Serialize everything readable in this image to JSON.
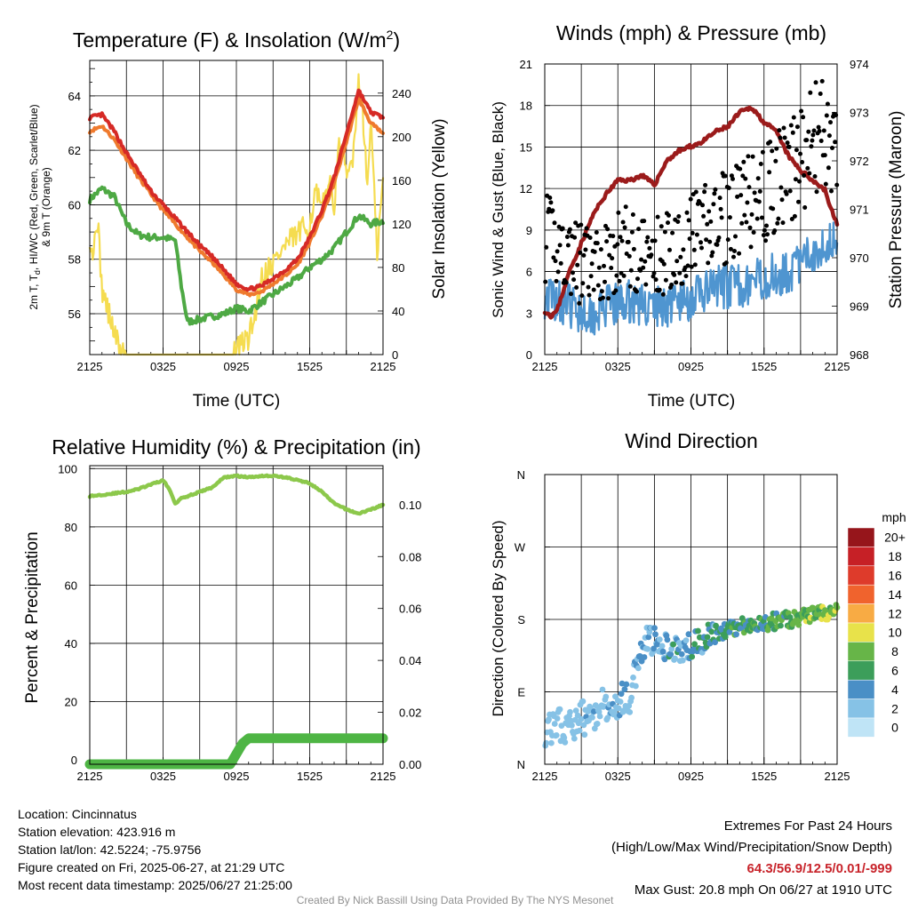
{
  "chart_data": [
    {
      "type": "line",
      "title": "Temperature (F) & Insolation (W/m²)",
      "title_main": "Temperature (F) & Insolation (W/m",
      "title_sup": "2",
      "title_end": ")",
      "xlabel": "Time (UTC)",
      "ylabel_left_lines": [
        "2m T, T",
        "d",
        ", HI/WC (Red, Green, Scarlet/Blue)",
        "& 9m T (Orange)"
      ],
      "ylabel_right": "Solar Insolation (Yellow)",
      "xlim": [
        0,
        24
      ],
      "x_ticks": [
        "2125",
        "0325",
        "0925",
        "1525",
        "2125"
      ],
      "ylim_left": [
        54.5,
        65.3
      ],
      "y_ticks_left": [
        "56",
        "58",
        "60",
        "62",
        "64"
      ],
      "ylim_right": [
        0,
        270
      ],
      "y_ticks_right": [
        "0",
        "40",
        "80",
        "120",
        "160",
        "200",
        "240"
      ],
      "series": [
        {
          "key": "2m_temp",
          "color": "#d62a26",
          "x": [
            0,
            1,
            2,
            3,
            4,
            5,
            6,
            7,
            8,
            9,
            10,
            11,
            12,
            13,
            14,
            15,
            16,
            17,
            18,
            19,
            20,
            21,
            22,
            23,
            24
          ],
          "y": [
            63.2,
            63.3,
            62.7,
            61.9,
            61.2,
            60.5,
            60.0,
            59.5,
            59.0,
            58.5,
            58.1,
            57.6,
            57.1,
            56.9,
            57.0,
            57.3,
            57.6,
            58.0,
            58.8,
            59.8,
            61.0,
            62.6,
            64.2,
            63.4,
            63.2
          ]
        },
        {
          "key": "9m_temp",
          "color": "#ef7a2e",
          "x": [
            0,
            1,
            2,
            3,
            4,
            5,
            6,
            7,
            8,
            9,
            10,
            11,
            12,
            13,
            14,
            15,
            16,
            17,
            18,
            19,
            20,
            21,
            22,
            23,
            24
          ],
          "y": [
            62.7,
            62.9,
            62.4,
            61.7,
            61.0,
            60.4,
            59.8,
            59.3,
            58.8,
            58.3,
            57.9,
            57.4,
            56.9,
            56.7,
            56.8,
            57.1,
            57.4,
            57.8,
            58.6,
            59.6,
            60.8,
            62.3,
            63.9,
            63.0,
            62.6
          ]
        },
        {
          "key": "dewpoint",
          "color": "#4ea944",
          "x": [
            0,
            1,
            2,
            3,
            4,
            5,
            6,
            7,
            7.5,
            8,
            9,
            10,
            11,
            12,
            13,
            14,
            15,
            16,
            17,
            18,
            19,
            20,
            21,
            22,
            23,
            24
          ],
          "y": [
            60.2,
            60.6,
            60.3,
            59.3,
            58.9,
            58.8,
            58.8,
            58.7,
            57.0,
            55.7,
            55.8,
            55.9,
            56.0,
            56.2,
            56.1,
            56.4,
            56.7,
            57.0,
            57.3,
            57.7,
            58.0,
            58.4,
            59.0,
            59.6,
            59.3,
            59.4
          ]
        },
        {
          "key": "insolation",
          "color": "#f5dc50",
          "x": [
            0,
            0.3,
            0.6,
            1.0,
            1.5,
            2.0,
            2.5,
            3.0,
            3.5,
            4.0,
            5,
            6,
            7,
            8,
            9,
            10,
            11,
            12,
            13,
            13.5,
            14,
            15,
            16,
            17,
            18,
            18.5,
            19,
            19.5,
            20,
            20.5,
            21,
            21.5,
            22,
            22.3,
            22.7,
            23,
            23.5,
            24
          ],
          "y": [
            110,
            90,
            130,
            60,
            40,
            20,
            5,
            0,
            0,
            0,
            0,
            0,
            0,
            0,
            0,
            0,
            0,
            5,
            15,
            35,
            70,
            85,
            100,
            110,
            120,
            150,
            130,
            160,
            140,
            200,
            160,
            180,
            250,
            235,
            150,
            220,
            90,
            160
          ]
        }
      ]
    },
    {
      "type": "line",
      "title": "Winds (mph) & Pressure (mb)",
      "xlabel": "Time (UTC)",
      "ylabel_left": "Sonic Wind & Gust (Blue, Black)",
      "ylabel_right": "Station Pressure (Maroon)",
      "xlim": [
        0,
        24
      ],
      "x_ticks": [
        "2125",
        "0325",
        "0925",
        "1525",
        "2125"
      ],
      "ylim_left": [
        0,
        21
      ],
      "y_ticks_left": [
        "0",
        "3",
        "6",
        "9",
        "12",
        "15",
        "18",
        "21"
      ],
      "ylim_right": [
        968,
        974
      ],
      "y_ticks_right": [
        "968",
        "969",
        "970",
        "971",
        "972",
        "973",
        "974"
      ],
      "series": [
        {
          "key": "wind",
          "color": "#4f95d0",
          "x": [
            0,
            1,
            2,
            3,
            4,
            5,
            6,
            7,
            8,
            9,
            10,
            11,
            12,
            13,
            14,
            15,
            16,
            17,
            18,
            19,
            20,
            21,
            22,
            23,
            24
          ],
          "y": [
            4.2,
            4.0,
            3.5,
            3.2,
            3.0,
            3.4,
            3.6,
            3.8,
            3.6,
            3.4,
            3.6,
            3.8,
            4.0,
            4.4,
            4.8,
            4.9,
            5.0,
            5.2,
            5.5,
            5.8,
            6.0,
            6.5,
            7.5,
            8.0,
            8.6
          ]
        },
        {
          "key": "gust",
          "color": "#000000",
          "x": [
            0,
            1,
            2,
            3,
            4,
            5,
            6,
            7,
            8,
            9,
            10,
            11,
            12,
            13,
            14,
            15,
            16,
            17,
            18,
            19,
            20,
            21,
            22,
            23,
            24
          ],
          "y": [
            8.5,
            8.0,
            7.2,
            6.5,
            6.0,
            6.8,
            7.5,
            7.8,
            7.2,
            6.8,
            7.5,
            8.0,
            8.5,
            9.0,
            9.5,
            10.0,
            10.5,
            11.0,
            11.5,
            12.5,
            13.0,
            14.0,
            15.5,
            16.0,
            14.0
          ]
        },
        {
          "key": "pressure",
          "color": "#9b1b1b",
          "x": [
            0,
            0.5,
            1,
            1.5,
            2,
            3,
            4,
            5,
            6,
            7,
            8,
            9,
            10,
            11,
            12,
            13,
            14,
            15,
            16,
            17,
            18,
            19,
            20,
            21,
            22,
            23,
            23.5,
            24
          ],
          "y": [
            968.9,
            968.8,
            968.9,
            969.3,
            969.7,
            970.3,
            970.9,
            971.3,
            971.6,
            971.6,
            971.7,
            971.5,
            972.0,
            972.2,
            972.3,
            972.4,
            972.6,
            972.7,
            973.0,
            973.1,
            972.8,
            972.6,
            972.1,
            971.8,
            971.6,
            971.4,
            971.0,
            970.7
          ]
        }
      ]
    },
    {
      "type": "line",
      "title": "Relative Humidity (%) & Precipitation (in)",
      "xlabel": "",
      "ylabel_left": "Percent & Precipitation",
      "xlim": [
        0,
        24
      ],
      "x_ticks": [
        "2125",
        "0325",
        "0925",
        "1525",
        "2125"
      ],
      "ylim_left": [
        0,
        100
      ],
      "y_ticks_left": [
        "0",
        "20",
        "40",
        "60",
        "80",
        "100"
      ],
      "ylim_right": [
        0,
        0.115
      ],
      "y_ticks_right": [
        "0.00",
        "0.02",
        "0.04",
        "0.06",
        "0.08",
        "0.10"
      ],
      "series": [
        {
          "key": "rh",
          "color": "#8cc84b",
          "x": [
            0,
            1,
            2,
            3,
            4,
            5,
            6,
            6.5,
            7,
            7.5,
            8,
            9,
            10,
            11,
            12,
            13,
            14,
            15,
            16,
            17,
            18,
            19,
            20,
            21,
            22,
            23,
            24
          ],
          "y": [
            90.5,
            91.0,
            91.5,
            92.0,
            93.0,
            94.5,
            96.0,
            93.0,
            88.0,
            90.0,
            90.5,
            92.0,
            93.5,
            97.0,
            97.5,
            97.0,
            97.5,
            97.5,
            97.0,
            96.0,
            95.0,
            92.0,
            88.0,
            86.0,
            84.5,
            86.0,
            87.5
          ]
        },
        {
          "key": "precip",
          "color": "#4eb544",
          "x": [
            0,
            11.5,
            12,
            12.5,
            13,
            24
          ],
          "y": [
            0,
            0,
            0.004,
            0.008,
            0.01,
            0.01
          ]
        }
      ]
    },
    {
      "type": "scatter",
      "title": "Wind Direction",
      "ylabel_left": "Direction (Colored By Speed)",
      "xlim": [
        0,
        24
      ],
      "x_ticks": [
        "2125",
        "0325",
        "0925",
        "1525",
        "2125"
      ],
      "y_ticks": [
        "N",
        "E",
        "S",
        "W",
        "N"
      ],
      "ylim": [
        0,
        360
      ],
      "colorbar": {
        "title": "mph",
        "labels": [
          "0",
          "2",
          "4",
          "6",
          "8",
          "10",
          "12",
          "14",
          "16",
          "18",
          "20+"
        ],
        "colors": [
          "#bfe4f6",
          "#86c2e6",
          "#4a8fc6",
          "#3c9e5a",
          "#67b548",
          "#e8e24a",
          "#f8ab44",
          "#f0632d",
          "#de3b2b",
          "#c62026",
          "#96151b"
        ]
      },
      "trend": {
        "x": [
          0,
          2,
          3.5,
          4,
          5,
          6,
          7,
          8,
          9,
          10,
          11,
          12,
          13,
          14,
          15,
          16,
          17,
          18,
          19,
          20,
          21,
          22,
          23,
          24
        ],
        "y": [
          45,
          50,
          60,
          60,
          75,
          80,
          85,
          150,
          155,
          145,
          140,
          148,
          155,
          162,
          168,
          172,
          175,
          176,
          178,
          180,
          182,
          186,
          190,
          188
        ]
      }
    }
  ],
  "footer": {
    "location": "Location: Cincinnatus",
    "elevation": "Station elevation: 423.916 m",
    "latlon": "Station lat/lon: 42.5224; -75.9756",
    "created": "Figure created on Fri, 2025-06-27, at 21:29 UTC",
    "recent": "Most recent data timestamp: 2025/06/27 21:25:00",
    "extremes_title": "Extremes For Past 24 Hours",
    "extremes_sub": "(High/Low/Max Wind/Precipitation/Snow Depth)",
    "extremes_values": "64.3/56.9/12.5/0.01/-999",
    "max_gust": "Max Gust: 20.8 mph On 06/27 at 1910 UTC",
    "credit": "Created By Nick Bassill Using Data Provided By The NYS Mesonet"
  }
}
